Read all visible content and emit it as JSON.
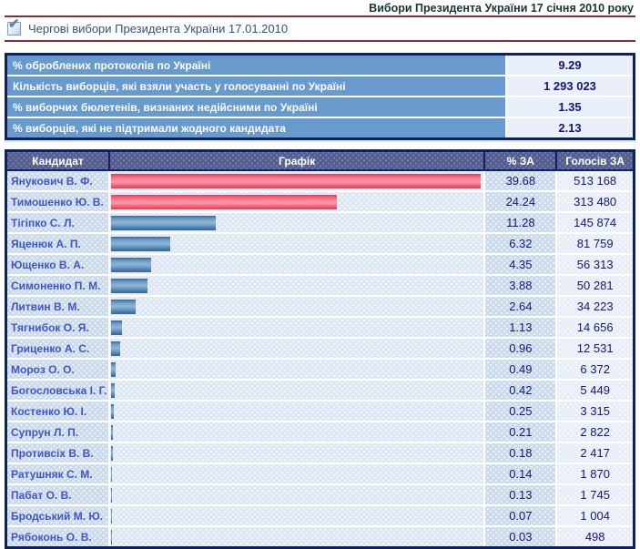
{
  "page": {
    "title": "Вибори Президента України 17 січня 2010 року"
  },
  "election_selector": {
    "checkbox_checked": true,
    "label": "Чергові вибори Президента України 17.01.2010"
  },
  "summary": {
    "rows": [
      {
        "label": "% оброблених протоколів по Україні",
        "value": "9.29"
      },
      {
        "label": "Кількість виборців, які взяли участь у голосуванні по Україні",
        "value": "1 293 023"
      },
      {
        "label": "% виборчих бюлетенів, визнаних недійсними по Україні",
        "value": "1.35"
      },
      {
        "label": "% виборців, які не підтримали жодного кандидата",
        "value": "2.13"
      }
    ]
  },
  "results_table": {
    "columns": [
      "Кандидат",
      "Графік",
      "% ЗА",
      "Голосів ЗА"
    ],
    "rows": [
      {
        "candidate": "Янукович В. Ф.",
        "percent": 39.68,
        "percent_text": "39.68",
        "votes": "513 168",
        "bar_color": "red"
      },
      {
        "candidate": "Тимошенко Ю. В.",
        "percent": 24.24,
        "percent_text": "24.24",
        "votes": "313 480",
        "bar_color": "red"
      },
      {
        "candidate": "Тігіпко С. Л.",
        "percent": 11.28,
        "percent_text": "11.28",
        "votes": "145 874",
        "bar_color": "blue"
      },
      {
        "candidate": "Яценюк А. П.",
        "percent": 6.32,
        "percent_text": "6.32",
        "votes": "81 759",
        "bar_color": "blue"
      },
      {
        "candidate": "Ющенко В. А.",
        "percent": 4.35,
        "percent_text": "4.35",
        "votes": "56 313",
        "bar_color": "blue"
      },
      {
        "candidate": "Симоненко П. М.",
        "percent": 3.88,
        "percent_text": "3.88",
        "votes": "50 281",
        "bar_color": "blue"
      },
      {
        "candidate": "Литвин В. М.",
        "percent": 2.64,
        "percent_text": "2.64",
        "votes": "34 223",
        "bar_color": "blue"
      },
      {
        "candidate": "Тягнибок О. Я.",
        "percent": 1.13,
        "percent_text": "1.13",
        "votes": "14 656",
        "bar_color": "blue"
      },
      {
        "candidate": "Гриценко А. С.",
        "percent": 0.96,
        "percent_text": "0.96",
        "votes": "12 531",
        "bar_color": "blue"
      },
      {
        "candidate": "Мороз О. О.",
        "percent": 0.49,
        "percent_text": "0.49",
        "votes": "6 372",
        "bar_color": "blue"
      },
      {
        "candidate": "Богословська І. Г.",
        "percent": 0.42,
        "percent_text": "0.42",
        "votes": "5 449",
        "bar_color": "blue"
      },
      {
        "candidate": "Костенко Ю. І.",
        "percent": 0.25,
        "percent_text": "0.25",
        "votes": "3 315",
        "bar_color": "blue"
      },
      {
        "candidate": "Супрун Л. П.",
        "percent": 0.21,
        "percent_text": "0.21",
        "votes": "2 822",
        "bar_color": "blue"
      },
      {
        "candidate": "Противсіх В. В.",
        "percent": 0.18,
        "percent_text": "0.18",
        "votes": "2 417",
        "bar_color": "blue"
      },
      {
        "candidate": "Ратушняк С. М.",
        "percent": 0.14,
        "percent_text": "0.14",
        "votes": "1 870",
        "bar_color": "blue"
      },
      {
        "candidate": "Пабат О. В.",
        "percent": 0.13,
        "percent_text": "0.13",
        "votes": "1 745",
        "bar_color": "blue"
      },
      {
        "candidate": "Бродський М. Ю.",
        "percent": 0.07,
        "percent_text": "0.07",
        "votes": "1 004",
        "bar_color": "blue"
      },
      {
        "candidate": "Рябоконь О. В.",
        "percent": 0.03,
        "percent_text": "0.03",
        "votes": "498",
        "bar_color": "blue"
      }
    ]
  },
  "chart_data": {
    "type": "bar",
    "title": "Вибори Президента України 17 січня 2010 року — % ЗА",
    "categories": [
      "Янукович В. Ф.",
      "Тимошенко Ю. В.",
      "Тігіпко С. Л.",
      "Яценюк А. П.",
      "Ющенко В. А.",
      "Симоненко П. М.",
      "Литвин В. М.",
      "Тягнибок О. Я.",
      "Гриценко А. С.",
      "Мороз О. О.",
      "Богословська І. Г.",
      "Костенко Ю. І.",
      "Супрун Л. П.",
      "Противсіх В. В.",
      "Ратушняк С. М.",
      "Пабат О. В.",
      "Бродський М. Ю.",
      "Рябоконь О. В."
    ],
    "series": [
      {
        "name": "% ЗА",
        "values": [
          39.68,
          24.24,
          11.28,
          6.32,
          4.35,
          3.88,
          2.64,
          1.13,
          0.96,
          0.49,
          0.42,
          0.25,
          0.21,
          0.18,
          0.14,
          0.13,
          0.07,
          0.03
        ]
      },
      {
        "name": "Голосів ЗА",
        "values": [
          513168,
          313480,
          145874,
          81759,
          56313,
          50281,
          34223,
          14656,
          12531,
          6372,
          5449,
          3315,
          2822,
          2417,
          1870,
          1745,
          1004,
          498
        ]
      }
    ],
    "xlabel": "",
    "ylabel": "",
    "xlim": [
      0,
      40
    ],
    "grid": false,
    "legend_position": "none"
  },
  "colors": {
    "bar_red": "#e8405c",
    "bar_blue": "#4a7aa8",
    "header_navy": "#525c8e",
    "table_border": "#0b2161",
    "summary_label_bg": "#689ace",
    "rule_red": "#8e2b30",
    "value_text": "#15157c",
    "candidate_text": "#3f55c8"
  },
  "icons": {
    "checked_checkbox": "✔"
  }
}
